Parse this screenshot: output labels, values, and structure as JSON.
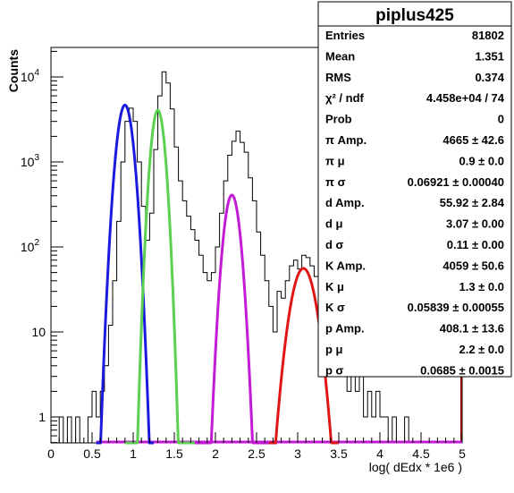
{
  "chart_data": {
    "type": "line",
    "title": "",
    "xlabel": "log( dEdx * 1e6 )",
    "ylabel": "Counts",
    "xlim": [
      0,
      5
    ],
    "ylim": [
      0.5,
      30000
    ],
    "yscale": "log",
    "grid": false,
    "x_ticks": [
      "0",
      "0.5",
      "1",
      "1.5",
      "2",
      "2.5",
      "3",
      "3.5",
      "4",
      "4.5",
      "5"
    ],
    "y_ticks": [
      {
        "base": "1",
        "exp": ""
      },
      {
        "base": "10",
        "exp": ""
      },
      {
        "base": "10",
        "exp": "2"
      },
      {
        "base": "10",
        "exp": "3"
      },
      {
        "base": "10",
        "exp": "4"
      }
    ],
    "histogram": {
      "name": "piplus425",
      "color": "#000000",
      "bins": [
        [
          0.0,
          0
        ],
        [
          0.05,
          0
        ],
        [
          0.1,
          1
        ],
        [
          0.15,
          0
        ],
        [
          0.2,
          1
        ],
        [
          0.25,
          0
        ],
        [
          0.3,
          1
        ],
        [
          0.35,
          0
        ],
        [
          0.4,
          0
        ],
        [
          0.45,
          1
        ],
        [
          0.5,
          2
        ],
        [
          0.55,
          1
        ],
        [
          0.6,
          2
        ],
        [
          0.65,
          4
        ],
        [
          0.7,
          12
        ],
        [
          0.75,
          40
        ],
        [
          0.8,
          200
        ],
        [
          0.85,
          1000
        ],
        [
          0.9,
          3000
        ],
        [
          0.95,
          4300
        ],
        [
          1.0,
          3000
        ],
        [
          1.05,
          1000
        ],
        [
          1.1,
          300
        ],
        [
          1.15,
          120
        ],
        [
          1.2,
          250
        ],
        [
          1.25,
          1400
        ],
        [
          1.3,
          6000
        ],
        [
          1.35,
          11500
        ],
        [
          1.4,
          8500
        ],
        [
          1.45,
          4200
        ],
        [
          1.5,
          1500
        ],
        [
          1.55,
          600
        ],
        [
          1.6,
          350
        ],
        [
          1.65,
          230
        ],
        [
          1.7,
          160
        ],
        [
          1.75,
          120
        ],
        [
          1.8,
          80
        ],
        [
          1.85,
          50
        ],
        [
          1.9,
          40
        ],
        [
          1.95,
          50
        ],
        [
          2.0,
          100
        ],
        [
          2.05,
          250
        ],
        [
          2.1,
          600
        ],
        [
          2.15,
          1200
        ],
        [
          2.2,
          1750
        ],
        [
          2.25,
          2300
        ],
        [
          2.3,
          1700
        ],
        [
          2.35,
          1300
        ],
        [
          2.4,
          650
        ],
        [
          2.45,
          350
        ],
        [
          2.5,
          150
        ],
        [
          2.55,
          80
        ],
        [
          2.6,
          40
        ],
        [
          2.65,
          20
        ],
        [
          2.7,
          10
        ],
        [
          2.75,
          30
        ],
        [
          2.8,
          25
        ],
        [
          2.85,
          40
        ],
        [
          2.9,
          60
        ],
        [
          2.95,
          70
        ],
        [
          3.0,
          55
        ],
        [
          3.05,
          80
        ],
        [
          3.1,
          75
        ],
        [
          3.15,
          60
        ],
        [
          3.2,
          45
        ],
        [
          3.25,
          30
        ],
        [
          3.3,
          22
        ],
        [
          3.35,
          15
        ],
        [
          3.4,
          10
        ],
        [
          3.45,
          8
        ],
        [
          3.5,
          4
        ],
        [
          3.55,
          3
        ],
        [
          3.6,
          2
        ],
        [
          3.65,
          3
        ],
        [
          3.7,
          2
        ],
        [
          3.75,
          3
        ],
        [
          3.8,
          1
        ],
        [
          3.85,
          2
        ],
        [
          3.9,
          1
        ],
        [
          3.95,
          2
        ],
        [
          4.0,
          1
        ],
        [
          4.05,
          1
        ],
        [
          4.1,
          0
        ],
        [
          4.15,
          1
        ],
        [
          4.2,
          0
        ],
        [
          4.25,
          0
        ],
        [
          4.3,
          1
        ],
        [
          4.35,
          0
        ],
        [
          4.4,
          0
        ],
        [
          4.45,
          0
        ],
        [
          4.5,
          0
        ],
        [
          4.55,
          0
        ],
        [
          4.6,
          0
        ],
        [
          4.65,
          0
        ],
        [
          4.7,
          0
        ],
        [
          4.75,
          0
        ],
        [
          4.8,
          0
        ],
        [
          4.85,
          0
        ],
        [
          4.9,
          0
        ],
        [
          4.95,
          0
        ]
      ]
    },
    "fits": [
      {
        "name": "π",
        "color": "#1a1adc",
        "amp": 4665,
        "mean": 0.9,
        "sigma": 0.06921,
        "x_range": [
          0.55,
          1.25
        ]
      },
      {
        "name": "K",
        "color": "#5bd14f",
        "amp": 4059,
        "mean": 1.3,
        "sigma": 0.05839,
        "x_range": [
          0.9,
          1.75
        ]
      },
      {
        "name": "p",
        "color": "#c21ad6",
        "amp": 408.1,
        "mean": 2.2,
        "sigma": 0.0685,
        "x_range": [
          1.75,
          2.75
        ]
      },
      {
        "name": "d",
        "color": "#e01616",
        "amp": 55.92,
        "mean": 3.07,
        "sigma": 0.11,
        "x_range": [
          2.65,
          3.5
        ]
      }
    ],
    "baseline_color": "#c21ad6",
    "baseline_x_range": [
      0.55,
      5.0
    ],
    "right_marker_color": "#8b0000"
  },
  "stats": {
    "title": "piplus425",
    "rows": [
      {
        "label": "Entries",
        "value": "81802"
      },
      {
        "label": "Mean",
        "value": "1.351"
      },
      {
        "label": "RMS",
        "value": "0.374"
      },
      {
        "label": "χ² / ndf",
        "value": "4.458e+04 / 74"
      },
      {
        "label": "Prob",
        "value": "0"
      },
      {
        "label": "π Amp.",
        "value": "4665 ± 42.6"
      },
      {
        "label": "π μ",
        "value": "0.9 ± 0.0"
      },
      {
        "label": "π σ",
        "value": "0.06921 ± 0.00040"
      },
      {
        "label": "d Amp.",
        "value": "55.92 ± 2.84"
      },
      {
        "label": "d μ",
        "value": "3.07 ± 0.00"
      },
      {
        "label": "d σ",
        "value": "0.11 ± 0.00"
      },
      {
        "label": "K Amp.",
        "value": "4059 ± 50.6"
      },
      {
        "label": "K μ",
        "value": "1.3 ± 0.0"
      },
      {
        "label": "K σ",
        "value": "0.05839 ± 0.00055"
      },
      {
        "label": "p Amp.",
        "value": "408.1 ± 13.6"
      },
      {
        "label": "p μ",
        "value": "2.2 ± 0.0"
      },
      {
        "label": "p σ",
        "value": "0.0685 ± 0.0015"
      }
    ]
  }
}
